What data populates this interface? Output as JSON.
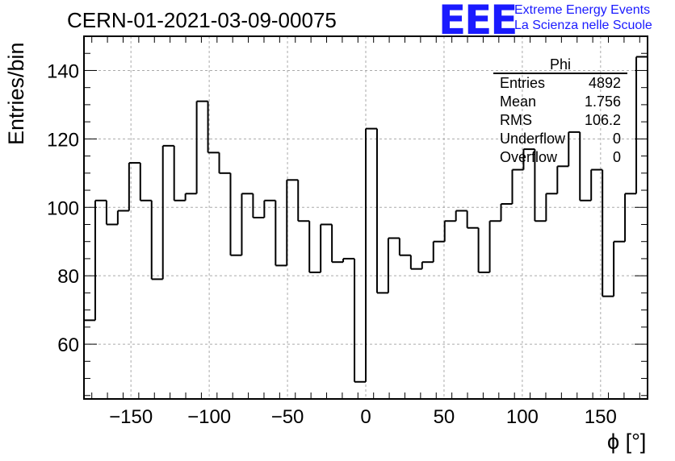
{
  "header": {
    "run_title": "CERN-01-2021-03-09-00075",
    "logo": "EEE",
    "logo_line1": "Extreme Energy Events",
    "logo_line2": "La Scienza nelle Scuole"
  },
  "stats": {
    "title": "Phi",
    "rows": [
      {
        "label": "Entries",
        "value": "4892"
      },
      {
        "label": "Mean",
        "value": "1.756"
      },
      {
        "label": "RMS",
        "value": "106.2"
      },
      {
        "label": "Underflow",
        "value": "0"
      },
      {
        "label": "Overflow",
        "value": "0"
      }
    ]
  },
  "chart_data": {
    "type": "bar",
    "style": "step-histogram",
    "xlabel": "ϕ [°]",
    "ylabel": "Entries/bin",
    "xlim": [
      -180,
      180
    ],
    "ylim": [
      44,
      150
    ],
    "bin_width": 7.2,
    "x_ticks": [
      -150,
      -100,
      -50,
      0,
      50,
      100,
      150
    ],
    "y_ticks": [
      60,
      80,
      100,
      120,
      140
    ],
    "grid": true,
    "values": [
      67,
      102,
      95,
      99,
      113,
      102,
      79,
      118,
      102,
      104,
      131,
      116,
      110,
      86,
      104,
      97,
      102,
      83,
      108,
      96,
      81,
      95,
      84,
      85,
      49,
      123,
      75,
      91,
      86,
      82,
      84,
      90,
      96,
      99,
      94,
      81,
      96,
      101,
      111,
      117,
      96,
      104,
      112,
      122,
      102,
      111,
      74,
      90,
      104,
      144
    ]
  }
}
